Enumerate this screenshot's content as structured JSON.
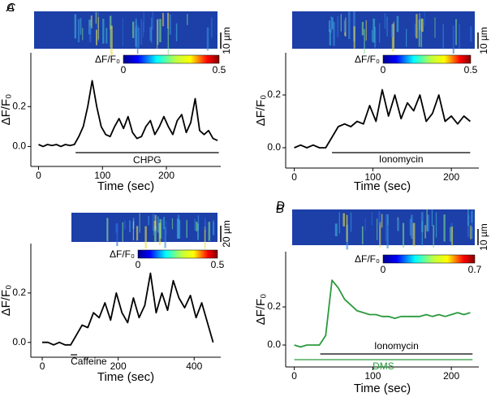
{
  "chart_data": [
    {
      "type": "line",
      "panel": "A",
      "xlabel": "Time (sec)",
      "ylabel": "ΔF/F₀",
      "color": "#000000",
      "x": [
        0,
        7,
        14,
        21,
        28,
        35,
        42,
        49,
        56,
        63,
        70,
        77,
        84,
        91,
        98,
        105,
        112,
        119,
        126,
        133,
        140,
        147,
        154,
        161,
        168,
        175,
        182,
        189,
        196,
        203,
        210,
        217,
        224,
        231,
        238,
        245,
        252,
        259,
        266,
        273,
        280
      ],
      "values": [
        0.01,
        0.0,
        0.01,
        0.005,
        0.01,
        0.0,
        0.01,
        0.005,
        0.01,
        0.05,
        0.1,
        0.2,
        0.33,
        0.2,
        0.1,
        0.06,
        0.05,
        0.1,
        0.14,
        0.09,
        0.15,
        0.07,
        0.04,
        0.05,
        0.1,
        0.13,
        0.06,
        0.1,
        0.15,
        0.1,
        0.06,
        0.13,
        0.16,
        0.07,
        0.12,
        0.24,
        0.08,
        0.06,
        0.08,
        0.04,
        0.03
      ],
      "xlim": [
        -12,
        285
      ],
      "ylim": [
        -0.1,
        0.47
      ],
      "xticks": [
        0,
        100,
        200
      ],
      "yticks": [
        {
          "value": 0,
          "label": "0.0"
        },
        0.2
      ],
      "stimuli": [
        {
          "label": "CHPG",
          "x": [
            58,
            282
          ],
          "color": "#000000"
        }
      ],
      "colorbar": {
        "label": "ΔF/F₀",
        "ticks": [
          0,
          0.5
        ]
      },
      "scale_bar": "10 µm"
    },
    {
      "type": "line",
      "panel": "B",
      "xlabel": "Time (sec)",
      "ylabel": "ΔF/F₀",
      "color": "#000000",
      "x": [
        0,
        15,
        30,
        45,
        60,
        75,
        90,
        105,
        120,
        135,
        150,
        165,
        180,
        195,
        210,
        225,
        240,
        255,
        270,
        285,
        300,
        315,
        330,
        345,
        360,
        375,
        390,
        405,
        420,
        435,
        450
      ],
      "values": [
        0.0,
        0.0,
        -0.01,
        0.0,
        -0.01,
        -0.01,
        0.03,
        0.07,
        0.06,
        0.12,
        0.1,
        0.16,
        0.09,
        0.2,
        0.12,
        0.08,
        0.18,
        0.1,
        0.15,
        0.28,
        0.12,
        0.2,
        0.13,
        0.25,
        0.18,
        0.14,
        0.19,
        0.1,
        0.16,
        0.08,
        0.0
      ],
      "xlim": [
        -30,
        470
      ],
      "ylim": [
        -0.06,
        0.4
      ],
      "xticks": [
        0,
        200,
        400
      ],
      "yticks": [
        {
          "value": 0,
          "label": "0.0"
        },
        0.2
      ],
      "stimuli": [
        {
          "label": "Caffeine",
          "x": [
            75,
            92
          ],
          "color": "#000000"
        }
      ],
      "colorbar": {
        "label": "ΔF/F₀",
        "ticks": [
          0,
          0.5
        ]
      },
      "scale_bar": "20 µm"
    },
    {
      "type": "line",
      "panel": "C",
      "xlabel": "Time (sec)",
      "ylabel": "ΔF/F₀",
      "color": "#000000",
      "x": [
        0,
        8,
        16,
        24,
        32,
        40,
        48,
        56,
        64,
        72,
        80,
        88,
        96,
        104,
        112,
        120,
        128,
        136,
        144,
        152,
        160,
        168,
        176,
        184,
        192,
        200,
        208,
        216,
        224
      ],
      "values": [
        0.0,
        0.01,
        0.0,
        0.01,
        0.0,
        0.0,
        0.04,
        0.08,
        0.09,
        0.08,
        0.1,
        0.09,
        0.16,
        0.1,
        0.22,
        0.12,
        0.2,
        0.11,
        0.17,
        0.14,
        0.2,
        0.1,
        0.13,
        0.2,
        0.1,
        0.12,
        0.09,
        0.12,
        0.1
      ],
      "xlim": [
        -11,
        235
      ],
      "ylim": [
        -0.077,
        0.36
      ],
      "xticks": [
        0,
        100,
        200
      ],
      "yticks": [
        {
          "value": 0,
          "label": "0.0"
        },
        0.2
      ],
      "stimuli": [
        {
          "label": "Ionomycin",
          "x": [
            48,
            224
          ],
          "color": "#000000"
        }
      ],
      "colorbar": {
        "label": "ΔF/F₀",
        "ticks": [
          0,
          0.5
        ]
      },
      "scale_bar": "10 µm"
    },
    {
      "type": "line",
      "panel": "D",
      "xlabel": "Time (sec)",
      "ylabel": "ΔF/F₀",
      "color": "#2a9a3c",
      "x": [
        0,
        8,
        16,
        24,
        32,
        40,
        48,
        56,
        64,
        72,
        80,
        88,
        96,
        104,
        112,
        120,
        128,
        136,
        144,
        152,
        160,
        168,
        176,
        184,
        192,
        200,
        208,
        216,
        224
      ],
      "values": [
        0.0,
        -0.01,
        0.0,
        0.0,
        0.0,
        0.05,
        0.34,
        0.3,
        0.24,
        0.21,
        0.18,
        0.17,
        0.16,
        0.16,
        0.15,
        0.15,
        0.14,
        0.15,
        0.15,
        0.15,
        0.15,
        0.16,
        0.15,
        0.16,
        0.15,
        0.16,
        0.17,
        0.16,
        0.17
      ],
      "xlim": [
        -11,
        235
      ],
      "ylim": [
        -0.115,
        0.49
      ],
      "xticks": [
        0,
        100,
        200
      ],
      "yticks": [
        {
          "value": 0,
          "label": "0.0"
        },
        0.2
      ],
      "stimuli": [
        {
          "label": "Ionomycin",
          "x": [
            33,
            227
          ],
          "color": "#000000"
        },
        {
          "label": "DMS",
          "x": [
            0,
            227
          ],
          "color": "#2a9a3c"
        }
      ],
      "colorbar": {
        "label": "ΔF/F₀",
        "ticks": [
          0,
          0.7
        ]
      },
      "scale_bar": "10 µm"
    }
  ]
}
